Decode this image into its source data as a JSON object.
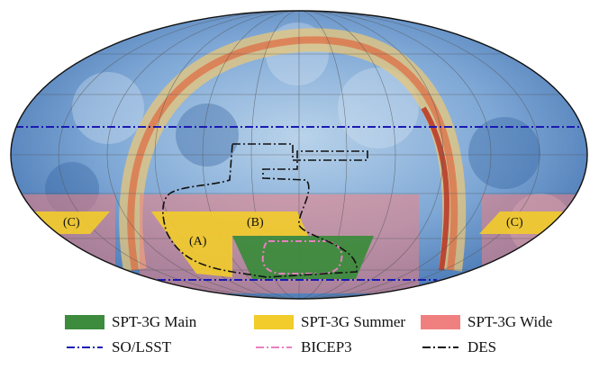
{
  "map": {
    "projection": "Mollweide",
    "background": "sky-map-heatmap",
    "colors": {
      "map_base": "#7fa8d6",
      "dust_band": "#e8c77a",
      "hot_band": "#c0392b",
      "grid": "#555555",
      "spt3g_main": "#3d8b3d",
      "spt3g_summer": "#f2cc2a",
      "spt3g_wide": "#f08080",
      "so_lsst": "#1a1ab3",
      "bicep3": "#e87fc0",
      "des": "#111111"
    },
    "region_labels": {
      "a": "(A)",
      "b": "(B)",
      "c_left": "(C)",
      "c_right": "(C)"
    }
  },
  "legend": {
    "items": [
      {
        "label": "SPT-3G Main",
        "style": "fill",
        "color": "#3d8b3d"
      },
      {
        "label": "SPT-3G Summer",
        "style": "fill",
        "color": "#f2cc2a"
      },
      {
        "label": "SPT-3G Wide",
        "style": "fill",
        "color": "#f08080"
      },
      {
        "label": "SO/LSST",
        "style": "dashdot",
        "color": "#1a1ab3"
      },
      {
        "label": "BICEP3",
        "style": "dashdot",
        "color": "#e87fc0"
      },
      {
        "label": "DES",
        "style": "dashdot",
        "color": "#111111"
      }
    ]
  }
}
